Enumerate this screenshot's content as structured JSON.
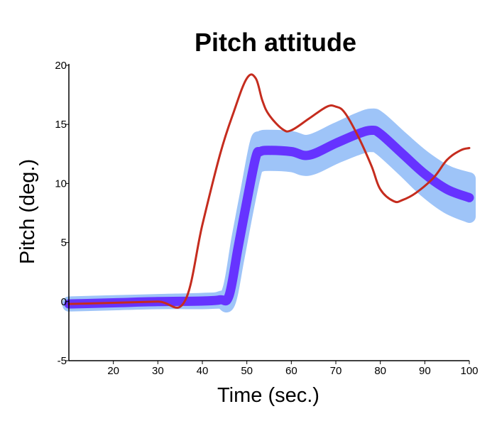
{
  "chart_data": {
    "type": "line",
    "title": "Pitch attitude",
    "xlabel": "Time  (sec.)",
    "ylabel": "Pitch  (deg.)",
    "xlim": [
      10,
      100
    ],
    "ylim": [
      -5,
      20
    ],
    "xticks": [
      "20",
      "30",
      "40",
      "50",
      "60",
      "70",
      "80",
      "90",
      "100"
    ],
    "xtick_values": [
      20,
      30,
      40,
      50,
      60,
      70,
      80,
      90,
      100
    ],
    "yticks": [
      "20",
      "15",
      "10",
      "5",
      "0",
      "-5"
    ],
    "ytick_values": [
      20,
      15,
      10,
      5,
      0,
      -5
    ],
    "grid": false,
    "legend": "none",
    "series": [
      {
        "style": "band",
        "color": "#9ec4f8",
        "x": [
          10,
          20,
          30,
          40,
          44,
          46,
          48,
          50,
          52,
          53,
          55,
          60,
          64,
          70,
          75,
          78,
          80,
          85,
          90,
          95,
          100
        ],
        "y": [
          -0.2,
          -0.1,
          0,
          0.05,
          0.15,
          0.5,
          4.5,
          8.5,
          12.2,
          12.7,
          12.8,
          12.7,
          12.4,
          13.4,
          14.2,
          14.5,
          14.2,
          12.5,
          10.8,
          9.5,
          8.8
        ],
        "halfwidth": [
          0.1,
          0.1,
          0.1,
          0.15,
          0.2,
          0.6,
          0.9,
          0.9,
          1.1,
          1.2,
          1.2,
          1.2,
          1.2,
          1.2,
          1.25,
          1.3,
          1.3,
          1.3,
          1.4,
          1.5,
          1.6
        ]
      },
      {
        "style": "thick",
        "color": "#6633ff",
        "x": [
          10,
          20,
          30,
          40,
          44,
          46,
          48,
          50,
          52,
          53,
          55,
          60,
          64,
          70,
          75,
          78,
          80,
          85,
          90,
          95,
          100
        ],
        "y": [
          -0.2,
          -0.1,
          0,
          0.05,
          0.15,
          0.5,
          4.5,
          8.5,
          12.2,
          12.7,
          12.8,
          12.7,
          12.4,
          13.4,
          14.2,
          14.5,
          14.2,
          12.5,
          10.8,
          9.5,
          8.8
        ]
      },
      {
        "style": "line",
        "color": "#c52c1e",
        "x": [
          10,
          20,
          30,
          36,
          40,
          44,
          47,
          50,
          52,
          53.5,
          55,
          58,
          60,
          64,
          68,
          70,
          72,
          75,
          78,
          80,
          83,
          85,
          88,
          92,
          95,
          98,
          100
        ],
        "y": [
          -0.2,
          -0.1,
          0,
          0,
          6.5,
          12.5,
          16,
          18.9,
          18.9,
          17,
          15.8,
          14.6,
          14.5,
          15.5,
          16.5,
          16.5,
          16,
          14,
          11.5,
          9.5,
          8.5,
          8.6,
          9.2,
          10.5,
          12,
          12.8,
          13
        ]
      }
    ]
  }
}
